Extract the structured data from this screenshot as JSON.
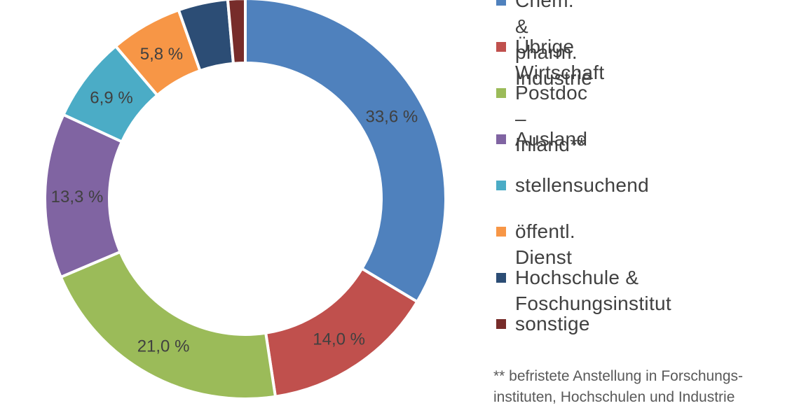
{
  "chart_data": {
    "type": "pie",
    "donut": true,
    "legend_position": "right",
    "title": "",
    "slices": [
      {
        "label": "Chem. & pharm. Industrie",
        "value": 33.6,
        "display": "33,6 %",
        "color": "#4f81bd"
      },
      {
        "label": "Übrige Wirtschaft",
        "value": 14.0,
        "display": "14,0 %",
        "color": "#c0504d"
      },
      {
        "label": "Postdoc – Inland**",
        "value": 21.0,
        "display": "21,0 %",
        "color": "#9bbb59"
      },
      {
        "label": "Ausland",
        "value": 13.3,
        "display": "13,3 %",
        "color": "#8064a2"
      },
      {
        "label": "stellensuchend",
        "value": 6.9,
        "display": "6,9 %",
        "color": "#4bacc6"
      },
      {
        "label": "öffentl. Dienst",
        "value": 5.8,
        "display": "5,8 %",
        "color": "#f79646"
      },
      {
        "label": "Hochschule &\nFoschungsinstitut",
        "value": 4.0,
        "display": "",
        "color": "#2c4d75"
      },
      {
        "label": "sonstige",
        "value": 1.4,
        "display": "",
        "color": "#772c2a"
      }
    ]
  },
  "footnote": "** befristete Anstellung in Forschungs-\ninstituten, Hochschulen und Industrie"
}
